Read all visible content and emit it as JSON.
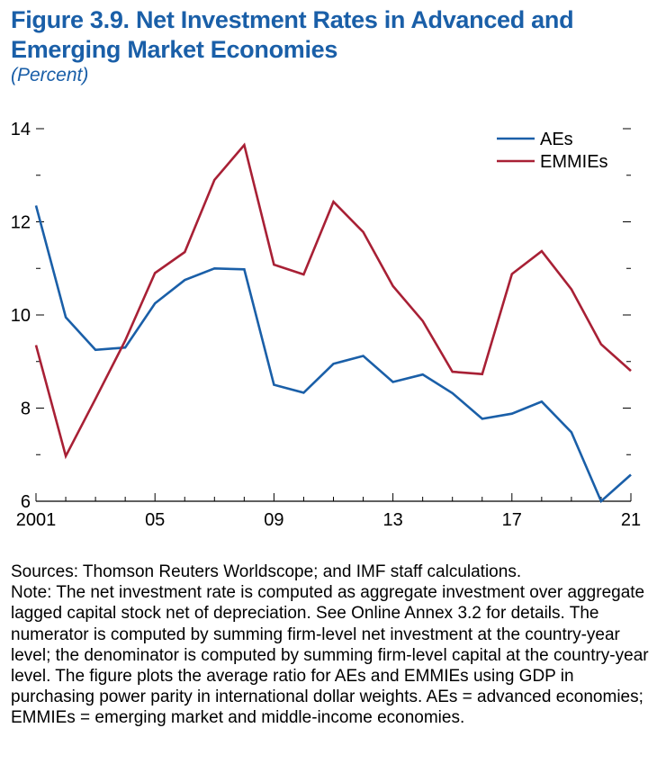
{
  "figure": {
    "title": "Figure 3.9.  Net Investment Rates in Advanced and Emerging Market Economies",
    "subtitle": "(Percent)"
  },
  "chart_data": {
    "type": "line",
    "title": "Figure 3.9.  Net Investment Rates in Advanced and Emerging Market Economies",
    "ylabel": "(Percent)",
    "xlabel": "",
    "x": [
      2001,
      2002,
      2003,
      2004,
      2005,
      2006,
      2007,
      2008,
      2009,
      2010,
      2011,
      2012,
      2013,
      2014,
      2015,
      2016,
      2017,
      2018,
      2019,
      2020,
      2021
    ],
    "xlim": [
      2001,
      2021
    ],
    "ylim": [
      6,
      14
    ],
    "x_ticks": [
      2001,
      2005,
      2009,
      2013,
      2017,
      2021
    ],
    "x_tick_labels": [
      "2001",
      "05",
      "09",
      "13",
      "17",
      "21"
    ],
    "y_ticks": [
      6,
      8,
      10,
      12,
      14
    ],
    "y_tick_labels": [
      "6",
      "8",
      "10",
      "12",
      "14"
    ],
    "y_minor_ticks": [
      7,
      9,
      11,
      13
    ],
    "grid": false,
    "legend_position": "top-right",
    "series": [
      {
        "name": "AEs",
        "color": "#1a5fa8",
        "values": [
          12.35,
          9.95,
          9.25,
          9.3,
          10.25,
          10.75,
          11.0,
          10.98,
          8.5,
          8.33,
          8.95,
          9.12,
          8.56,
          8.72,
          8.32,
          7.77,
          7.88,
          8.14,
          7.48,
          6.0,
          6.57
        ]
      },
      {
        "name": "EMMIEs",
        "color": "#a82035",
        "values": [
          9.35,
          6.97,
          8.2,
          9.45,
          10.9,
          11.35,
          12.9,
          13.65,
          11.08,
          10.87,
          12.43,
          11.78,
          10.62,
          9.87,
          8.78,
          8.73,
          10.88,
          11.37,
          10.55,
          9.37,
          8.8
        ]
      }
    ]
  },
  "notes": {
    "sources": "Sources: Thomson Reuters Worldscope; and IMF staff calculations.",
    "note": "Note: The net investment rate is computed as aggregate investment over aggregate lagged capital stock net of depreciation. See Online Annex 3.2 for details. The numerator is computed by summing firm-level net investment at the country-year level; the denominator is computed by summing firm-level capital at the country-year level. The figure plots the average ratio for AEs and EMMIEs using GDP in purchasing power parity in international dollar weights. AEs = advanced economies; EMMIEs = emerging market and middle-income economies."
  }
}
